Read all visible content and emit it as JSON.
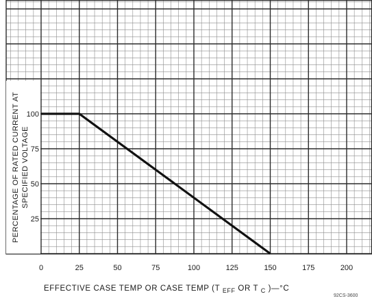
{
  "chart_data": {
    "type": "line",
    "title": "",
    "xlabel": "EFFECTIVE CASE TEMP  OR CASE TEMP  (T",
    "xlabel_sub_1": "EFF",
    "xlabel_mid": " OR T",
    "xlabel_sub_2": "C",
    "xlabel_end": ")—°C",
    "ylabel": [
      "PERCENTAGE OF RATED CURRENT AT",
      "SPECIFIED VOLTAGE"
    ],
    "xlim": [
      0,
      220
    ],
    "ylim": [
      0,
      125
    ],
    "grid": true,
    "x_ticks": [
      0,
      25,
      50,
      75,
      100,
      125,
      150,
      175,
      200
    ],
    "y_ticks": [
      25,
      50,
      75,
      100
    ],
    "series": [
      {
        "x": [
          0,
          25,
          150
        ],
        "y": [
          100,
          100,
          0
        ]
      }
    ]
  },
  "figure_code": "92CS-3600"
}
